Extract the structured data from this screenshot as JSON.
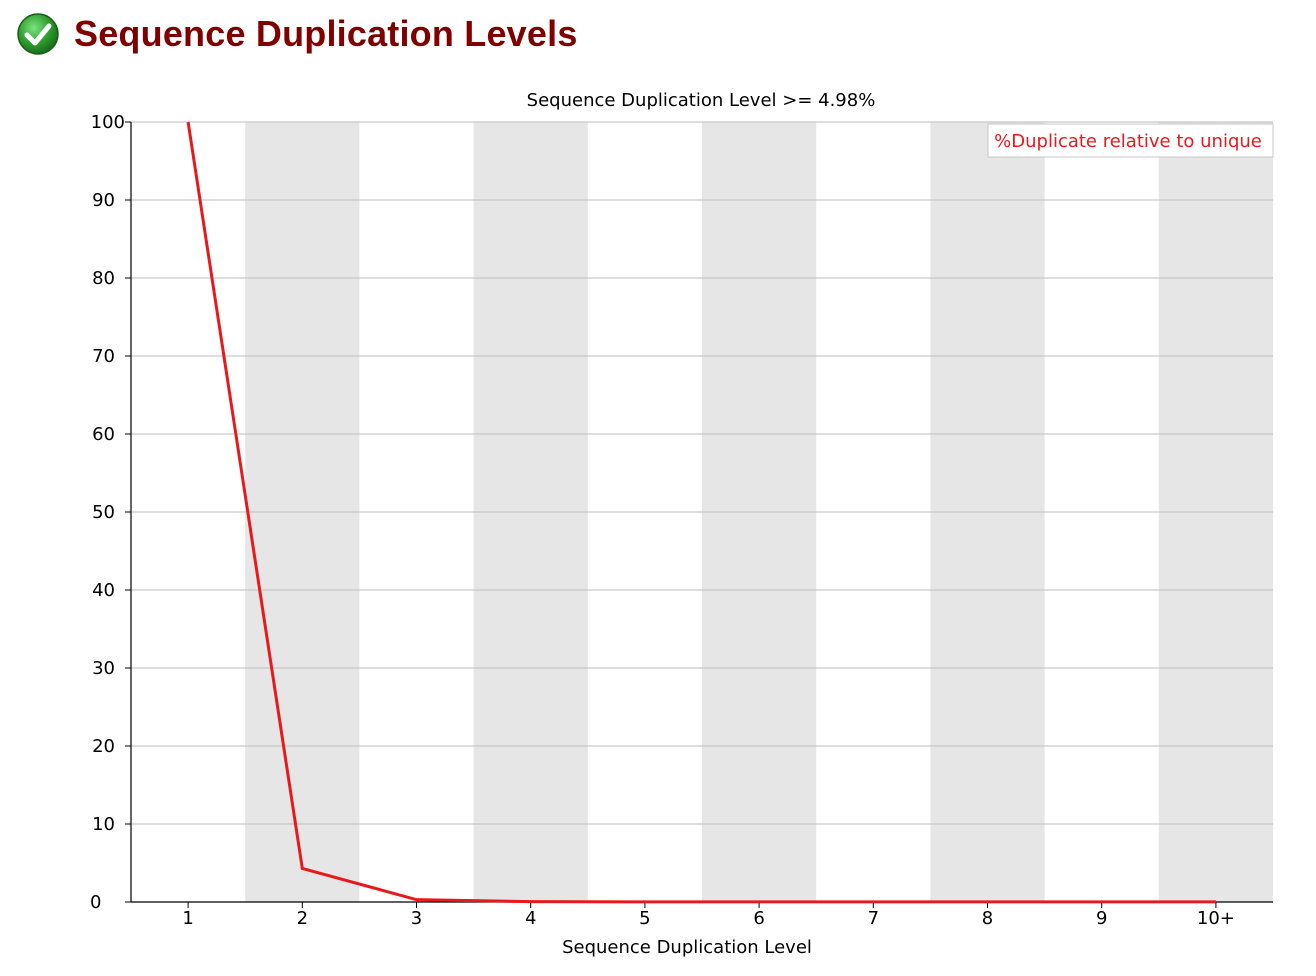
{
  "page": {
    "title": "Sequence Duplication Levels",
    "status_icon": "check-icon",
    "status_color": "#2e9e2e"
  },
  "chart_data": {
    "type": "line",
    "title": "Sequence Duplication Level >= 4.98%",
    "xlabel": "Sequence Duplication Level",
    "ylabel": "",
    "categories": [
      "1",
      "2",
      "3",
      "4",
      "5",
      "6",
      "7",
      "8",
      "9",
      "10+"
    ],
    "ylim": [
      0,
      100
    ],
    "yticks": [
      0,
      10,
      20,
      30,
      40,
      50,
      60,
      70,
      80,
      90,
      100
    ],
    "grid": true,
    "band_color": "#e6e6e6",
    "legend_position": "top-right",
    "series": [
      {
        "name": "%Duplicate relative to unique",
        "color": "#e8191c",
        "values": [
          100,
          4.3,
          0.3,
          0.05,
          0.02,
          0.01,
          0.01,
          0.01,
          0.01,
          0.02
        ]
      }
    ]
  }
}
